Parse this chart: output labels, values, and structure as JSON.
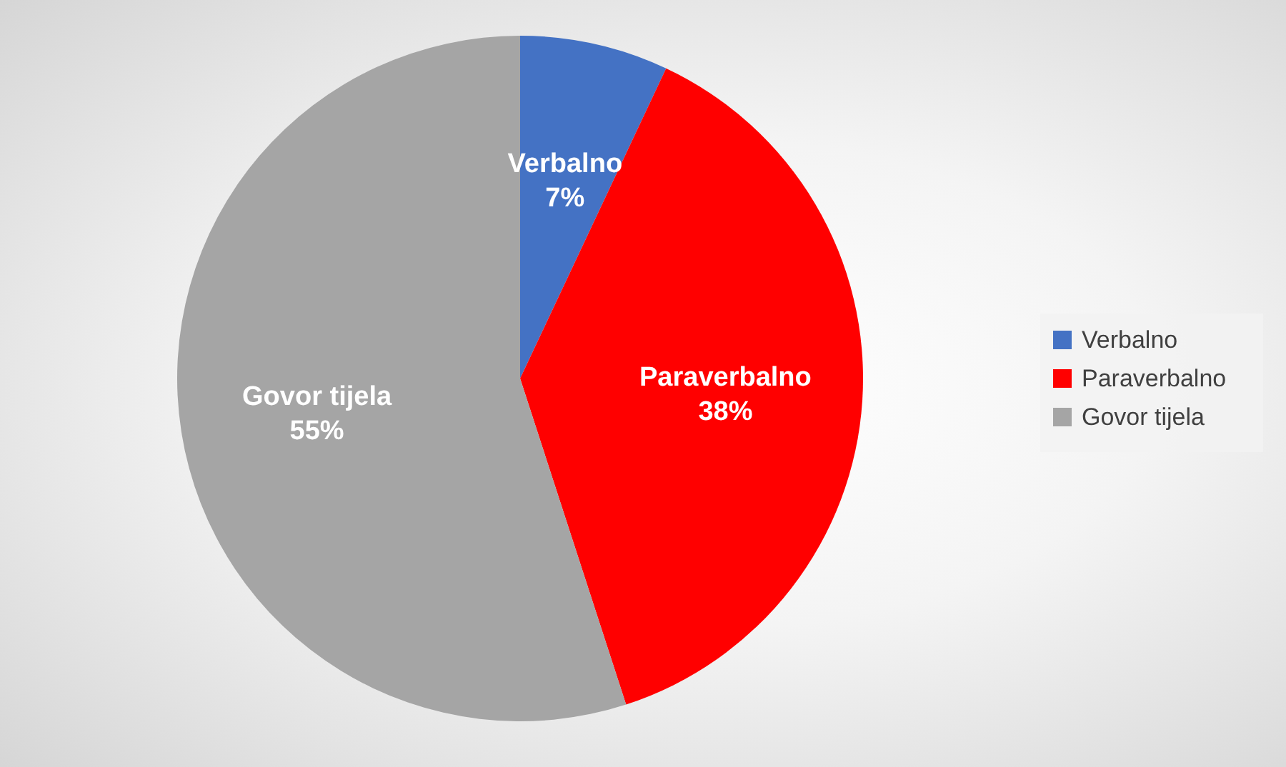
{
  "chart_data": {
    "type": "pie",
    "categories": [
      "Verbalno",
      "Paraverbalno",
      "Govor tijela"
    ],
    "values": [
      7,
      38,
      55
    ],
    "value_labels": [
      "7%",
      "38%",
      "55%"
    ],
    "colors": [
      "#4472c4",
      "#ff0000",
      "#a5a5a5"
    ],
    "legend": "right"
  }
}
